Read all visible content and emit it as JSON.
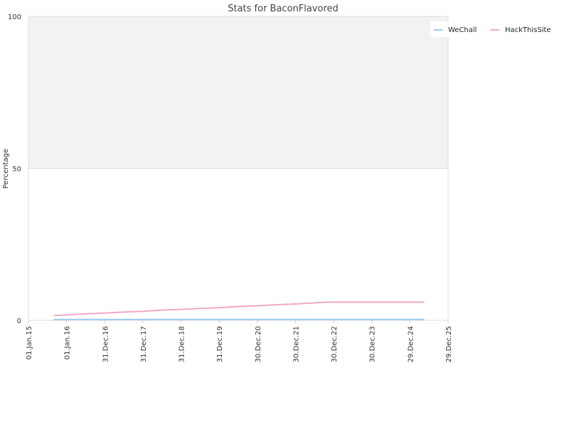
{
  "chart_data": {
    "type": "line",
    "title": "Stats for BaconFlavored",
    "xlabel": "",
    "ylabel": "Percentage",
    "ylim": [
      0,
      100
    ],
    "yticks": [
      0,
      50,
      100
    ],
    "xlim": [
      "2015-01-01",
      "2025-12-29"
    ],
    "xticks": [
      {
        "date": "2015-01-01",
        "label": "01.Jan.15"
      },
      {
        "date": "2016-01-01",
        "label": "01.Jan.16"
      },
      {
        "date": "2016-12-31",
        "label": "31.Dec.16"
      },
      {
        "date": "2017-12-31",
        "label": "31.Dec.17"
      },
      {
        "date": "2018-12-31",
        "label": "31.Dec.18"
      },
      {
        "date": "2019-12-31",
        "label": "31.Dec.19"
      },
      {
        "date": "2020-12-30",
        "label": "30.Dec.20"
      },
      {
        "date": "2021-12-30",
        "label": "30.Dec.21"
      },
      {
        "date": "2022-12-30",
        "label": "30.Dec.22"
      },
      {
        "date": "2023-12-30",
        "label": "30.Dec.23"
      },
      {
        "date": "2024-12-29",
        "label": "29.Dec.24"
      },
      {
        "date": "2025-12-29",
        "label": "29.Dec.25"
      }
    ],
    "grid": true,
    "legend_position": "top-right",
    "series": [
      {
        "name": "WeChall",
        "color": "#99ccee",
        "x": [
          "2015-09-01",
          "2016-01-01",
          "2017-01-01",
          "2018-01-01",
          "2019-01-01",
          "2020-01-01",
          "2021-01-01",
          "2022-01-01",
          "2023-01-01",
          "2024-01-01",
          "2025-01-01",
          "2025-05-15"
        ],
        "y": [
          0.3,
          0.3,
          0.3,
          0.3,
          0.3,
          0.3,
          0.3,
          0.3,
          0.3,
          0.3,
          0.3,
          0.3
        ]
      },
      {
        "name": "HackThisSite",
        "color": "#f0a8c8",
        "x": [
          "2015-09-01",
          "2016-01-01",
          "2016-06-01",
          "2017-01-01",
          "2017-06-01",
          "2018-01-01",
          "2018-06-01",
          "2019-01-01",
          "2019-06-01",
          "2020-01-01",
          "2020-06-01",
          "2021-01-01",
          "2021-06-01",
          "2022-01-01",
          "2022-06-01",
          "2022-11-01",
          "2023-06-01",
          "2024-01-01",
          "2024-06-01",
          "2025-05-15"
        ],
        "y": [
          1.6,
          1.8,
          2.1,
          2.4,
          2.7,
          3.0,
          3.3,
          3.6,
          3.9,
          4.2,
          4.5,
          4.8,
          5.1,
          5.4,
          5.7,
          6.0,
          6.0,
          6.0,
          6.0,
          6.0
        ]
      }
    ]
  }
}
